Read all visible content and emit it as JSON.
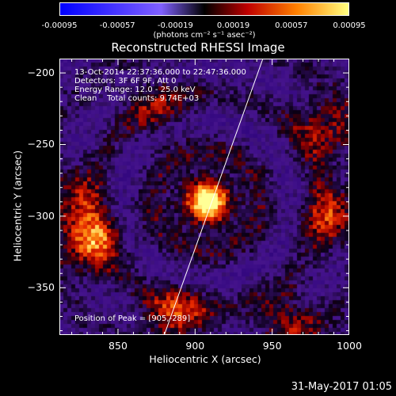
{
  "colorbar": {
    "tick_labels": [
      "-0.00095",
      "-0.00057",
      "-0.00019",
      "0.00019",
      "0.00057",
      "0.00095"
    ],
    "tick_values": [
      -0.00095,
      -0.00057,
      -0.00019,
      0.00019,
      0.00057,
      0.00095
    ],
    "unit_label": "(photons cm⁻² s⁻¹ asec⁻²)",
    "colors": [
      "#0000ff",
      "#8060ff",
      "#000000",
      "#c00000",
      "#ff8000",
      "#ffff80"
    ]
  },
  "chart_data": {
    "type": "heatmap",
    "title": "Reconstructed RHESSI Image",
    "xlabel": "Heliocentric X (arcsec)",
    "ylabel": "Heliocentric Y (arcsec)",
    "xlim": [
      812,
      1000
    ],
    "ylim": [
      -383,
      -190
    ],
    "x_ticks": [
      850,
      900,
      950,
      1000
    ],
    "y_ticks": [
      -200,
      -250,
      -300,
      -350
    ],
    "x_tick_labels": [
      "850",
      "900",
      "950",
      "1000"
    ],
    "y_tick_labels": [
      "−200",
      "−250",
      "−300",
      "−350"
    ],
    "peak": [
      905,
      -289
    ],
    "annotations": {
      "time_range": "13-Oct-2014 22:37:36.000 to 22:47:36.000",
      "detectors": "Detectors: 3F 6F 9F, Att 0",
      "energy_range": "Energy Range: 12.0 - 25.0 keV",
      "clean": "Clean    Total counts: 9.74E+03",
      "peak_position": "Position of Peak = [905,-289]"
    },
    "sources": [
      {
        "x": 908,
        "y": -290,
        "amplitude": 1.0
      },
      {
        "x": 832,
        "y": -318,
        "amplitude": 0.75
      },
      {
        "x": 818,
        "y": -285,
        "amplitude": 0.45
      },
      {
        "x": 888,
        "y": -370,
        "amplitude": 0.6
      },
      {
        "x": 990,
        "y": -300,
        "amplitude": 0.55
      },
      {
        "x": 985,
        "y": -240,
        "amplitude": 0.5
      },
      {
        "x": 875,
        "y": -225,
        "amplitude": 0.35
      },
      {
        "x": 960,
        "y": -375,
        "amplitude": 0.45
      }
    ],
    "limb_points": [
      [
        880,
        -383
      ],
      [
        944,
        -190
      ]
    ]
  },
  "datestamp": "31-May-2017 01:05"
}
